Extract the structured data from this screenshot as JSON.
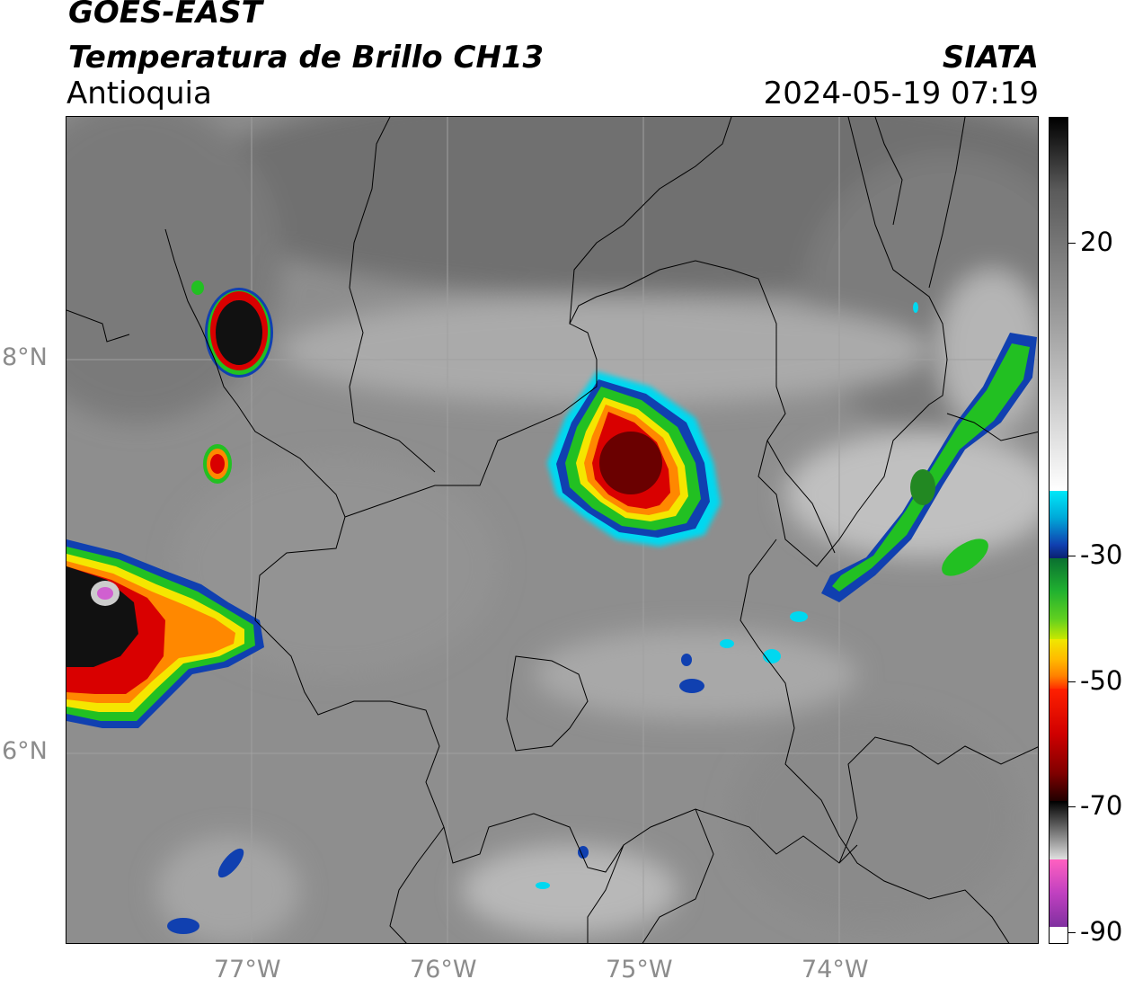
{
  "header": {
    "satellite": "GOES-EAST",
    "product": "Temperatura de Brillo CH13",
    "region": "Antioquia",
    "organization": "SIATA",
    "datetime": "2024-05-19 07:19"
  },
  "map": {
    "lat_labels": [
      "8°N",
      "6°N"
    ],
    "lon_labels": [
      "77°W",
      "76°W",
      "75°W",
      "74°W"
    ],
    "gridlines": true
  },
  "colorbar": {
    "ticks": [
      "20",
      "-30",
      "-50",
      "-70",
      "-90"
    ],
    "colors": {
      "black": "#111111",
      "red": "#d90000",
      "orange": "#ff8800",
      "yellow": "#f5e600",
      "green": "#22c022",
      "blue": "#1040b0",
      "cyan": "#00d8f0",
      "magenta": "#c040c0",
      "white": "#ffffff",
      "gray": "#808080"
    }
  }
}
